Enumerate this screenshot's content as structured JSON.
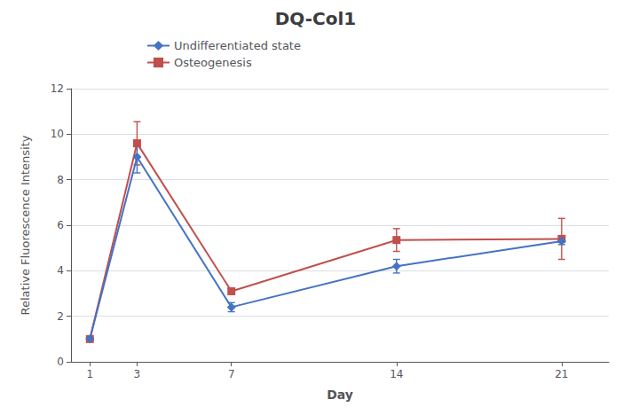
{
  "chart_data": {
    "type": "line",
    "title": "DQ-Col1",
    "xlabel": "Day",
    "ylabel": "Relative Fluorescence Intensity",
    "x": [
      1,
      3,
      7,
      14,
      21
    ],
    "series": [
      {
        "name": "Undifferentiated state",
        "color": "#4472C4",
        "marker": "diamond",
        "values": [
          1.0,
          9.0,
          2.4,
          4.2,
          5.3
        ],
        "errors": [
          0.05,
          0.7,
          0.2,
          0.3,
          0.15
        ]
      },
      {
        "name": "Osteogenesis",
        "color": "#C0504D",
        "marker": "square",
        "values": [
          1.0,
          9.6,
          3.1,
          5.35,
          5.4
        ],
        "errors": [
          0.05,
          0.95,
          0.1,
          0.5,
          0.9
        ]
      }
    ],
    "xlim": [
      0.2,
      23
    ],
    "xticks": [
      1,
      3,
      7,
      14,
      21
    ],
    "ylim": [
      0,
      12
    ],
    "yticks": [
      0,
      2,
      4,
      6,
      8,
      10,
      12
    ],
    "grid": true,
    "legend": "top"
  }
}
